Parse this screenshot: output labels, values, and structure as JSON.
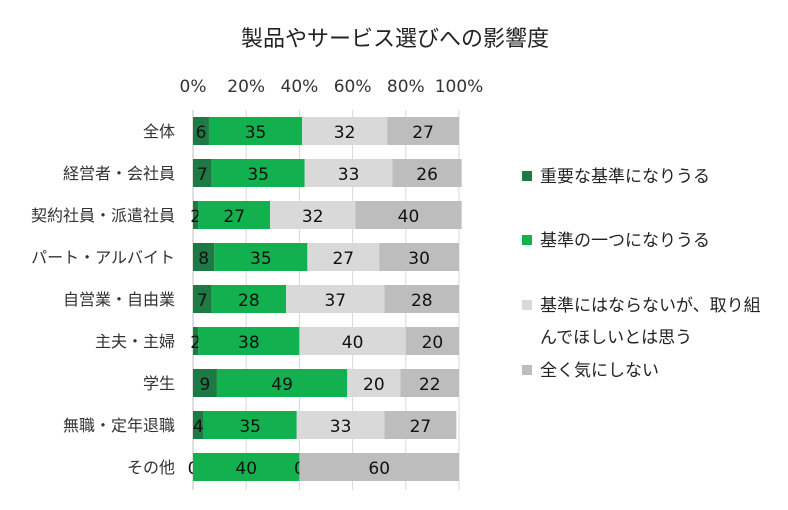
{
  "chart_data": {
    "type": "bar",
    "orientation": "horizontal",
    "stacked": "percent",
    "title": "製品やサービス選びへの影響度",
    "x_ticks": [
      "0%",
      "20%",
      "40%",
      "60%",
      "80%",
      "100%"
    ],
    "xlim": [
      0,
      100
    ],
    "categories": [
      "全体",
      "経営者・会社員",
      "契約社員・派遣社員",
      "パート・アルバイト",
      "自営業・自由業",
      "主夫・主婦",
      "学生",
      "無職・定年退職",
      "その他"
    ],
    "series": [
      {
        "name": "重要な基準になりうる",
        "color": "#1e7a45",
        "values": [
          6,
          7,
          2,
          8,
          7,
          2,
          9,
          4,
          0
        ]
      },
      {
        "name": "基準の一つになりうる",
        "color": "#12b04f",
        "values": [
          35,
          35,
          27,
          35,
          28,
          38,
          49,
          35,
          40
        ]
      },
      {
        "name": "基準にはならないが、取り組んでほしいとは思う",
        "color": "#d9d9d9",
        "values": [
          32,
          33,
          32,
          27,
          37,
          40,
          20,
          33,
          0
        ]
      },
      {
        "name": "全く気にしない",
        "color": "#bdbdbd",
        "values": [
          27,
          26,
          40,
          30,
          28,
          20,
          22,
          27,
          60
        ]
      }
    ],
    "legend_position": "right",
    "grid": false
  }
}
